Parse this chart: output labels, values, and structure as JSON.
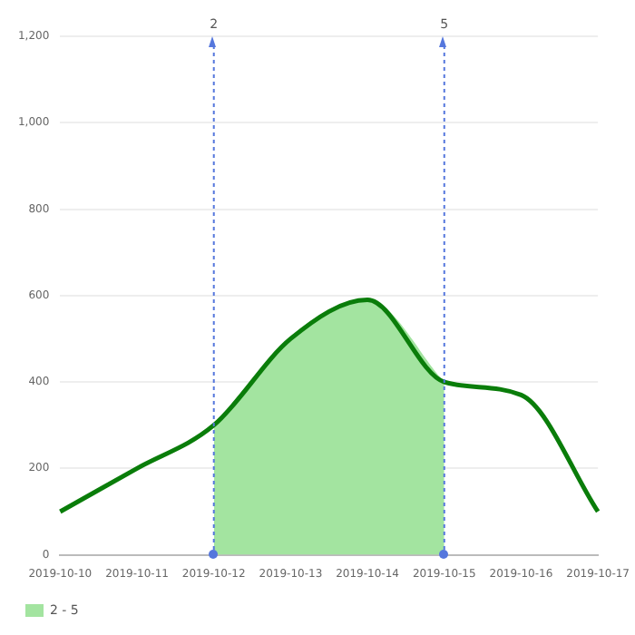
{
  "chart_data": {
    "type": "line",
    "categories": [
      "2019-10-10",
      "2019-10-11",
      "2019-10-12",
      "2019-10-13",
      "2019-10-14",
      "2019-10-15",
      "2019-10-16",
      "2019-10-17"
    ],
    "series": [
      {
        "color": "#0a7d0a",
        "values": [
          100,
          200,
          300,
          500,
          590,
          400,
          370,
          100
        ]
      },
      {
        "type": "area",
        "name": "2 - 5",
        "color": "#a3e4a0",
        "values": [
          null,
          null,
          300,
          500,
          590,
          400,
          null,
          null
        ]
      }
    ],
    "ylim": [
      0,
      1200
    ],
    "yticks": [
      0,
      200,
      400,
      600,
      800,
      {
        "value": 1000,
        "label": "1,000"
      },
      {
        "value": 1200,
        "label": "1,200"
      }
    ],
    "grid": "y",
    "marker": "none",
    "line_style": "solid",
    "legend": "bottom left",
    "ref_lines": [
      {
        "axis": "x",
        "value": "2019-10-12",
        "label": "2",
        "color": "#5577dd",
        "line_style": "dotted"
      },
      {
        "axis": "x",
        "value": "2019-10-15",
        "label": "5",
        "color": "#5577dd",
        "line_style": "dotted"
      }
    ]
  }
}
